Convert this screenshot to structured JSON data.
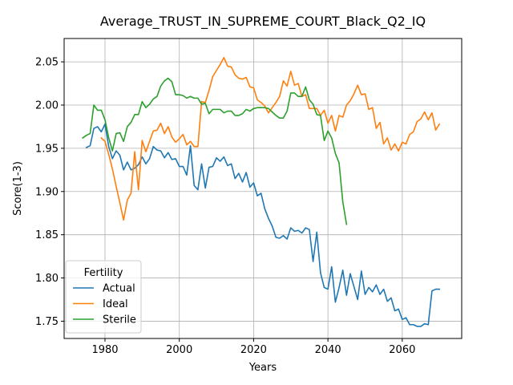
{
  "chart_data": {
    "type": "line",
    "title": "Average_TRUST_IN_SUPREME_COURT_Black_Q2_IQ",
    "xlabel": "Years",
    "ylabel": "Score(1-3)",
    "xlim": [
      1969,
      2076
    ],
    "ylim": [
      1.73,
      2.077
    ],
    "xticks": [
      1980,
      2000,
      2020,
      2040,
      2060
    ],
    "yticks": [
      1.75,
      1.8,
      1.85,
      1.9,
      1.95,
      2.0,
      2.05
    ],
    "grid": true,
    "legend": {
      "title": "Fertility",
      "position": "lower-left"
    },
    "series": [
      {
        "name": "Actual",
        "color": "#1f77b4",
        "x": [
          1975,
          1976,
          1977,
          1978,
          1979,
          1980,
          1981,
          1982,
          1983,
          1984,
          1985,
          1986,
          1987,
          1988,
          1989,
          1990,
          1991,
          1992,
          1993,
          1994,
          1995,
          1996,
          1997,
          1998,
          1999,
          2000,
          2001,
          2002,
          2003,
          2004,
          2005,
          2006,
          2007,
          2008,
          2009,
          2010,
          2011,
          2012,
          2013,
          2014,
          2015,
          2016,
          2017,
          2018,
          2019,
          2020,
          2021,
          2022,
          2023,
          2024,
          2025,
          2026,
          2027,
          2028,
          2029,
          2030,
          2031,
          2032,
          2033,
          2034,
          2035,
          2036,
          2037,
          2038,
          2039,
          2040,
          2041,
          2042,
          2043,
          2044,
          2045,
          2046,
          2047,
          2048,
          2049,
          2050,
          2051,
          2052,
          2053,
          2054,
          2055,
          2056,
          2057,
          2058,
          2059,
          2060,
          2061,
          2062,
          2063,
          2064,
          2065,
          2066,
          2067,
          2068,
          2069,
          2070
        ],
        "y": [
          1.951,
          1.953,
          1.973,
          1.975,
          1.969,
          1.978,
          1.952,
          1.938,
          1.947,
          1.942,
          1.925,
          1.934,
          1.925,
          1.927,
          1.931,
          1.94,
          1.932,
          1.938,
          1.952,
          1.948,
          1.947,
          1.939,
          1.945,
          1.937,
          1.938,
          1.929,
          1.929,
          1.919,
          1.953,
          1.907,
          1.902,
          1.932,
          1.904,
          1.928,
          1.929,
          1.939,
          1.935,
          1.94,
          1.93,
          1.932,
          1.915,
          1.921,
          1.911,
          1.922,
          1.905,
          1.91,
          1.895,
          1.898,
          1.88,
          1.869,
          1.86,
          1.847,
          1.846,
          1.849,
          1.845,
          1.858,
          1.854,
          1.855,
          1.852,
          1.858,
          1.856,
          1.819,
          1.853,
          1.806,
          1.789,
          1.787,
          1.813,
          1.772,
          1.789,
          1.809,
          1.78,
          1.805,
          1.79,
          1.775,
          1.808,
          1.781,
          1.789,
          1.784,
          1.792,
          1.781,
          1.787,
          1.773,
          1.777,
          1.762,
          1.764,
          1.752,
          1.754,
          1.746,
          1.746,
          1.744,
          1.744,
          1.747,
          1.746,
          1.785,
          1.787,
          1.787
        ]
      },
      {
        "name": "Ideal",
        "color": "#ff7f0e",
        "x": [
          1979,
          1980,
          1981,
          1982,
          1983,
          1984,
          1985,
          1986,
          1987,
          1988,
          1989,
          1990,
          1991,
          1992,
          1993,
          1994,
          1995,
          1996,
          1997,
          1998,
          1999,
          2000,
          2001,
          2002,
          2003,
          2004,
          2005,
          2006,
          2007,
          2008,
          2009,
          2010,
          2011,
          2012,
          2013,
          2014,
          2015,
          2016,
          2017,
          2018,
          2019,
          2020,
          2021,
          2022,
          2023,
          2024,
          2025,
          2026,
          2027,
          2028,
          2029,
          2030,
          2031,
          2032,
          2033,
          2034,
          2035,
          2036,
          2037,
          2038,
          2039,
          2040,
          2041,
          2042,
          2043,
          2044,
          2045,
          2046,
          2047,
          2048,
          2049,
          2050,
          2051,
          2052,
          2053,
          2054,
          2055,
          2056,
          2057,
          2058,
          2059,
          2060,
          2061,
          2062,
          2063,
          2064,
          2065,
          2066,
          2067,
          2068,
          2069,
          2070
        ],
        "y": [
          1.962,
          1.958,
          1.943,
          1.926,
          1.906,
          1.887,
          1.867,
          1.89,
          1.898,
          1.946,
          1.902,
          1.959,
          1.946,
          1.958,
          1.97,
          1.971,
          1.979,
          1.967,
          1.975,
          1.963,
          1.957,
          1.961,
          1.966,
          1.954,
          1.958,
          1.952,
          1.952,
          2.004,
          2.003,
          2.017,
          2.033,
          2.04,
          2.047,
          2.055,
          2.045,
          2.044,
          2.035,
          2.031,
          2.03,
          2.032,
          2.021,
          2.02,
          2.006,
          2.003,
          1.999,
          1.991,
          1.997,
          2.003,
          2.01,
          2.028,
          2.022,
          2.039,
          2.023,
          2.025,
          2.01,
          2.012,
          1.996,
          1.996,
          1.996,
          1.988,
          1.994,
          1.979,
          1.988,
          1.97,
          1.988,
          1.986,
          2.0,
          2.005,
          2.013,
          2.023,
          2.012,
          2.013,
          1.995,
          1.997,
          1.973,
          1.98,
          1.955,
          1.962,
          1.948,
          1.955,
          1.947,
          1.957,
          1.955,
          1.966,
          1.969,
          1.981,
          1.984,
          1.992,
          1.983,
          1.991,
          1.971,
          1.978
        ]
      },
      {
        "name": "Sterile",
        "color": "#2ca02c",
        "x": [
          1974,
          1975,
          1976,
          1977,
          1978,
          1979,
          1980,
          1981,
          1982,
          1983,
          1984,
          1985,
          1986,
          1987,
          1988,
          1989,
          1990,
          1991,
          1992,
          1993,
          1994,
          1995,
          1996,
          1997,
          1998,
          1999,
          2000,
          2001,
          2002,
          2003,
          2004,
          2005,
          2006,
          2007,
          2008,
          2009,
          2010,
          2011,
          2012,
          2013,
          2014,
          2015,
          2016,
          2017,
          2018,
          2019,
          2020,
          2021,
          2022,
          2023,
          2024,
          2025,
          2026,
          2027,
          2028,
          2029,
          2030,
          2031,
          2032,
          2033,
          2034,
          2035,
          2036,
          2037,
          2038,
          2039,
          2040,
          2041,
          2042,
          2043,
          2044,
          2045
        ],
        "y": [
          1.962,
          1.965,
          1.967,
          2.0,
          1.994,
          1.994,
          1.983,
          1.962,
          1.947,
          1.967,
          1.968,
          1.958,
          1.975,
          1.98,
          1.989,
          1.989,
          2.004,
          1.997,
          2.001,
          2.007,
          2.01,
          2.022,
          2.028,
          2.031,
          2.027,
          2.012,
          2.012,
          2.011,
          2.008,
          2.01,
          2.008,
          2.008,
          2.001,
          2.002,
          1.99,
          1.995,
          1.995,
          1.995,
          1.991,
          1.993,
          1.993,
          1.988,
          1.988,
          1.99,
          1.995,
          1.993,
          1.996,
          1.997,
          1.997,
          1.997,
          1.996,
          1.992,
          1.988,
          1.985,
          1.985,
          1.993,
          2.014,
          2.014,
          2.01,
          2.01,
          2.021,
          2.006,
          2.001,
          1.989,
          1.988,
          1.959,
          1.97,
          1.962,
          1.944,
          1.933,
          1.888,
          1.862
        ]
      }
    ]
  }
}
